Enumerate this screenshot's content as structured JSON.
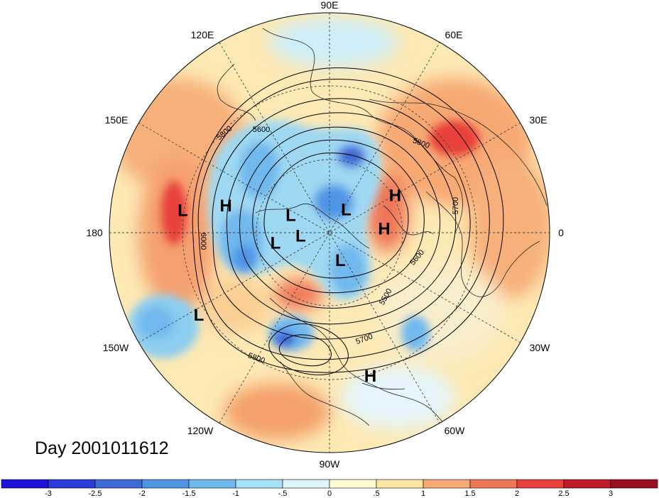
{
  "title": "Day 2001011612",
  "longitude_labels": [
    "90E",
    "60E",
    "30E",
    "0",
    "30W",
    "60W",
    "90W",
    "120W",
    "150W",
    "180",
    "150E",
    "120E"
  ],
  "pressure_systems": [
    {
      "label": "H",
      "lon": 30,
      "lat": 52
    },
    {
      "label": "L",
      "lon": 171,
      "lat": 22
    },
    {
      "label": "H",
      "lon": 165,
      "lat": 38
    },
    {
      "label": "L",
      "lon": 155,
      "lat": 68
    },
    {
      "label": "L",
      "lon": 55,
      "lat": 75
    },
    {
      "label": "L",
      "lon": -175,
      "lat": 75
    },
    {
      "label": "L",
      "lon": -170,
      "lat": 62
    },
    {
      "label": "L",
      "lon": -68,
      "lat": 75
    },
    {
      "label": "H",
      "lon": 5,
      "lat": 62
    },
    {
      "label": "L",
      "lon": -148,
      "lat": 20
    },
    {
      "label": "H",
      "lon": -74,
      "lat": 22
    }
  ],
  "contour_labels": [
    "5600",
    "5800",
    "5800",
    "5700",
    "5600",
    "5500",
    "5700",
    "5800",
    "6000"
  ],
  "colorbar": {
    "ticks": [
      "-3",
      "-2.5",
      "-2",
      "-1.5",
      "-1",
      "-.5",
      "0",
      ".5",
      "1",
      "1.5",
      "2",
      "2.5",
      "3"
    ],
    "colors": [
      "#1e12d9",
      "#2a3bd6",
      "#3e6ad9",
      "#4f95e6",
      "#6fb8ee",
      "#a5e2f7",
      "#dff5fb",
      "#fffbd5",
      "#fde3a4",
      "#f7a973",
      "#ef7657",
      "#e8403a",
      "#c01a2a",
      "#9b0e22"
    ]
  }
}
